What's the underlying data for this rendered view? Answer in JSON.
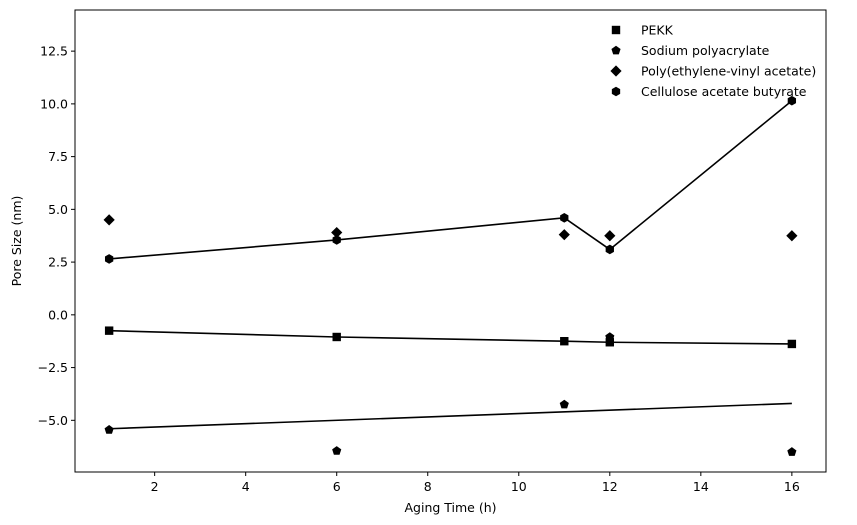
{
  "chart_data": {
    "type": "scatter",
    "title": "",
    "xlabel": "Aging Time (h)",
    "ylabel": "Pore Size (nm)",
    "xlim": [
      0.25,
      16.75
    ],
    "ylim": [
      -7.45,
      14.45
    ],
    "xticks": [
      2,
      4,
      6,
      8,
      10,
      12,
      14,
      16
    ],
    "yticks": [
      -5.0,
      -2.5,
      0.0,
      2.5,
      5.0,
      7.5,
      10.0,
      12.5
    ],
    "xtick_labels": [
      "2",
      "4",
      "6",
      "8",
      "10",
      "12",
      "14",
      "16"
    ],
    "ytick_labels": [
      "−5.0",
      "−2.5",
      "0.0",
      "2.5",
      "5.0",
      "7.5",
      "10.0",
      "12.5"
    ],
    "grid": false,
    "legend": {
      "placement": "top-right"
    },
    "series": [
      {
        "name": "PEKK",
        "marker": "square",
        "color": "#000000",
        "x": [
          1,
          6,
          11,
          12,
          16
        ],
        "y": [
          -0.75,
          -1.05,
          -1.25,
          -1.3,
          -1.38
        ],
        "fit_line": {
          "x": [
            1,
            6,
            11,
            12,
            16
          ],
          "y": [
            -0.75,
            -1.05,
            -1.25,
            -1.3,
            -1.38
          ]
        }
      },
      {
        "name": "Sodium polyacrylate",
        "marker": "pentagon",
        "color": "#000000",
        "x": [
          1,
          6,
          11,
          12,
          16
        ],
        "y": [
          -5.45,
          -6.45,
          -4.25,
          -1.05,
          -6.5
        ],
        "fit_line": {
          "x": [
            1,
            16
          ],
          "y": [
            -5.4,
            -4.2
          ]
        }
      },
      {
        "name": "Poly(ethylene-vinyl acetate)",
        "marker": "diamond",
        "color": "#000000",
        "x": [
          1,
          6,
          11,
          12,
          16
        ],
        "y": [
          4.5,
          3.9,
          3.8,
          3.75,
          3.75
        ]
      },
      {
        "name": "Cellulose acetate butyrate",
        "marker": "hexagon",
        "color": "#000000",
        "x": [
          1,
          6,
          11,
          12,
          16
        ],
        "y": [
          2.65,
          3.55,
          4.6,
          3.1,
          10.15
        ],
        "fit_line": {
          "x": [
            1,
            6,
            11,
            12,
            16
          ],
          "y": [
            2.65,
            3.55,
            4.6,
            3.1,
            10.15
          ]
        }
      }
    ]
  }
}
